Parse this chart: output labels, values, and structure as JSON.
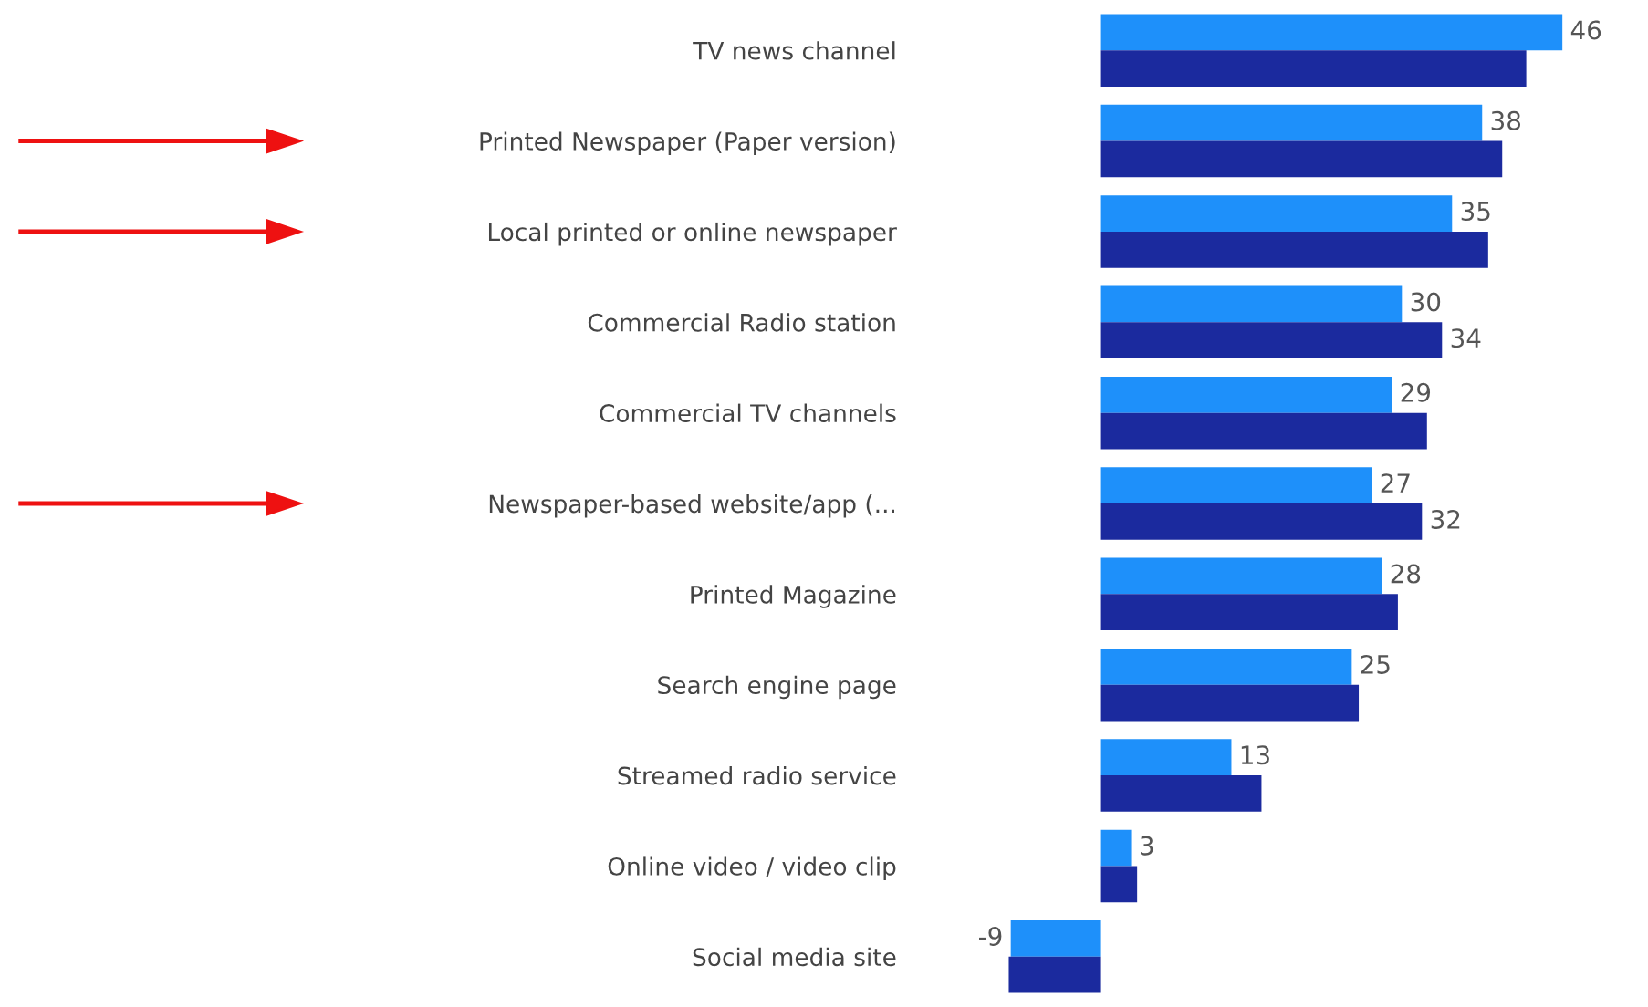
{
  "chart_data": {
    "type": "bar",
    "orientation": "horizontal",
    "categories": [
      "TV news channel",
      "Printed Newspaper (Paper version)",
      "Local printed or online newspaper",
      "Commercial Radio station",
      "Commercial TV channels",
      "Newspaper-based website/app (...",
      "Printed Magazine",
      "Search engine page",
      "Streamed radio service",
      "Online video / video clip",
      "Social media site"
    ],
    "series": [
      {
        "color": "#1e90fa",
        "values": [
          46,
          38,
          35,
          30,
          29,
          27,
          28,
          25,
          13,
          3,
          -9
        ],
        "value_labels": [
          "46",
          "38",
          "35",
          "30",
          "29",
          "27",
          "28",
          "25",
          "13",
          "3",
          "-9"
        ]
      },
      {
        "color": "#1b2a9e",
        "values": [
          42.4,
          40,
          38.6,
          34,
          32.5,
          32,
          29.6,
          25.7,
          16,
          3.6,
          -9.2
        ],
        "value_labels": [
          null,
          null,
          null,
          "34",
          null,
          "32",
          null,
          null,
          null,
          null,
          null
        ]
      }
    ],
    "tick_labels": "y"
  }
}
